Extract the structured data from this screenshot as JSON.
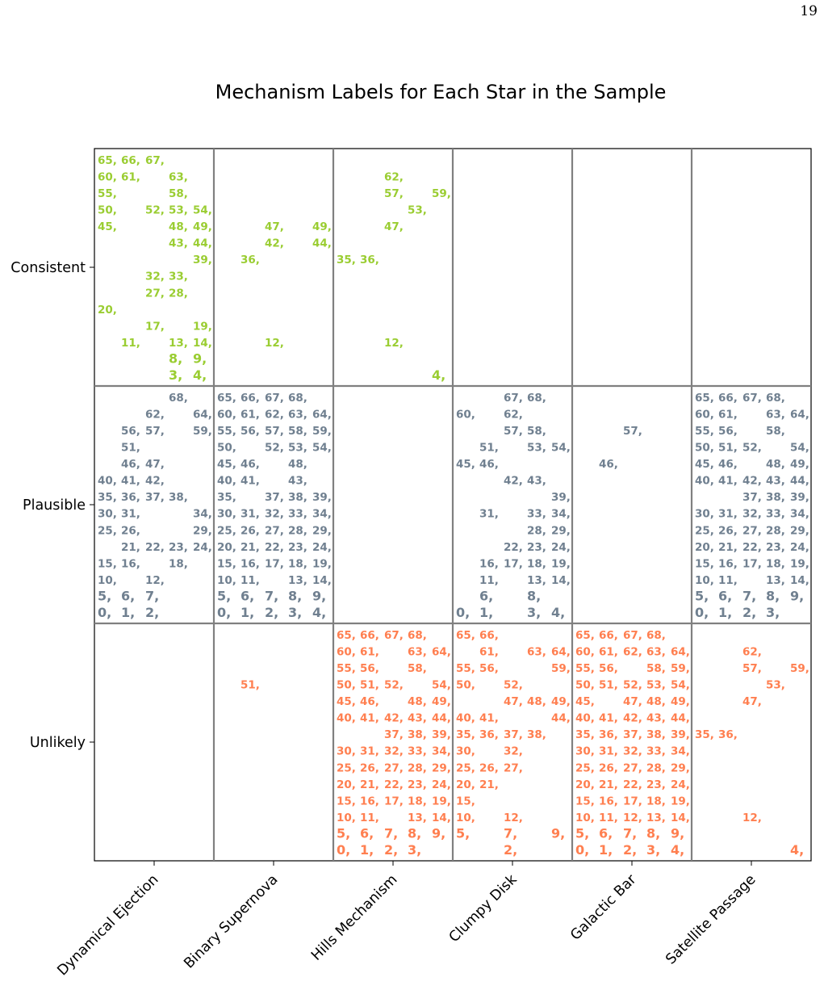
{
  "page_number": "19",
  "chart_data": {
    "type": "table",
    "title": "Mechanism Labels for Each Star in the Sample",
    "xlabel": "",
    "ylabel": "",
    "columns": [
      "Dynamical Ejection",
      "Binary Supernova",
      "Hills Mechanism",
      "Clumpy Disk",
      "Galactic Bar",
      "Satellite Passage"
    ],
    "rows": [
      "Consistent",
      "Plausible",
      "Unlikely"
    ],
    "colors": {
      "Consistent": "#9acd32",
      "Plausible": "#708090",
      "Unlikely": "#ff7f50"
    },
    "grid_color": "#808080",
    "label_format": "star index followed by a comma",
    "cells": {
      "Consistent": [
        [
          3,
          4,
          8,
          9,
          11,
          13,
          14,
          17,
          19,
          20,
          27,
          28,
          32,
          33,
          39,
          43,
          44,
          45,
          48,
          49,
          50,
          52,
          53,
          54,
          55,
          58,
          60,
          61,
          63,
          65,
          66,
          67
        ],
        [
          12,
          36,
          42,
          44,
          47,
          49
        ],
        [
          4,
          12,
          35,
          36,
          47,
          53,
          57,
          59,
          62
        ],
        [],
        [],
        []
      ],
      "Plausible": [
        [
          0,
          1,
          2,
          5,
          6,
          7,
          10,
          12,
          15,
          16,
          18,
          21,
          22,
          23,
          24,
          25,
          26,
          29,
          30,
          31,
          34,
          35,
          36,
          37,
          38,
          40,
          41,
          42,
          46,
          47,
          51,
          56,
          57,
          59,
          62,
          64,
          68
        ],
        [
          0,
          1,
          2,
          3,
          4,
          5,
          6,
          7,
          8,
          9,
          10,
          11,
          13,
          14,
          15,
          16,
          17,
          18,
          19,
          20,
          21,
          22,
          23,
          24,
          25,
          26,
          27,
          28,
          29,
          30,
          31,
          32,
          33,
          34,
          35,
          37,
          38,
          39,
          40,
          41,
          43,
          45,
          46,
          48,
          50,
          52,
          53,
          54,
          55,
          56,
          57,
          58,
          59,
          60,
          61,
          62,
          63,
          64,
          65,
          66,
          67,
          68
        ],
        [],
        [
          0,
          1,
          3,
          4,
          6,
          8,
          11,
          13,
          14,
          16,
          17,
          18,
          19,
          22,
          23,
          24,
          28,
          29,
          31,
          33,
          34,
          39,
          42,
          43,
          45,
          46,
          51,
          53,
          54,
          57,
          58,
          60,
          62,
          67,
          68
        ],
        [
          46,
          57
        ],
        [
          0,
          1,
          2,
          3,
          5,
          6,
          7,
          8,
          9,
          10,
          11,
          13,
          14,
          15,
          16,
          17,
          18,
          19,
          20,
          21,
          22,
          23,
          24,
          25,
          26,
          27,
          28,
          29,
          30,
          31,
          32,
          33,
          34,
          37,
          38,
          39,
          40,
          41,
          42,
          43,
          44,
          45,
          46,
          48,
          49,
          50,
          51,
          52,
          54,
          55,
          56,
          58,
          60,
          61,
          63,
          64,
          65,
          66,
          67,
          68
        ]
      ],
      "Unlikely": [
        [],
        [
          51
        ],
        [
          0,
          1,
          2,
          3,
          5,
          6,
          7,
          8,
          9,
          10,
          11,
          13,
          14,
          15,
          16,
          17,
          18,
          19,
          20,
          21,
          22,
          23,
          24,
          25,
          26,
          27,
          28,
          29,
          30,
          31,
          32,
          33,
          34,
          37,
          38,
          39,
          40,
          41,
          42,
          43,
          44,
          45,
          46,
          48,
          49,
          50,
          51,
          52,
          54,
          55,
          56,
          58,
          60,
          61,
          63,
          64,
          65,
          66,
          67,
          68
        ],
        [
          2,
          5,
          7,
          9,
          10,
          12,
          15,
          20,
          21,
          25,
          26,
          27,
          30,
          32,
          35,
          36,
          37,
          38,
          40,
          41,
          44,
          47,
          48,
          49,
          50,
          52,
          55,
          56,
          59,
          61,
          63,
          64,
          65,
          66
        ],
        [
          0,
          1,
          2,
          3,
          4,
          5,
          6,
          7,
          8,
          9,
          10,
          11,
          12,
          13,
          14,
          15,
          16,
          17,
          18,
          19,
          20,
          21,
          22,
          23,
          24,
          25,
          26,
          27,
          28,
          29,
          30,
          31,
          32,
          33,
          34,
          35,
          36,
          37,
          38,
          39,
          40,
          41,
          42,
          43,
          44,
          45,
          47,
          48,
          49,
          50,
          51,
          52,
          53,
          54,
          55,
          56,
          58,
          59,
          60,
          61,
          62,
          63,
          64,
          65,
          66,
          67,
          68
        ],
        [
          4,
          12,
          35,
          36,
          47,
          53,
          57,
          59,
          62
        ]
      ]
    }
  }
}
